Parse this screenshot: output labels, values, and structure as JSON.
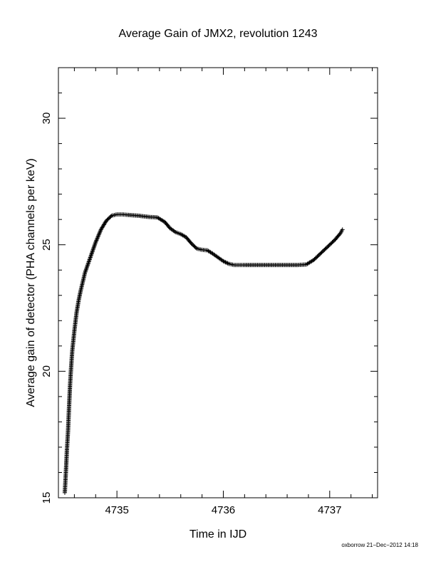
{
  "chart_data": {
    "type": "scatter",
    "title": "Average Gain of JMX2, revolution 1243",
    "xlabel": "Time in IJD",
    "ylabel": "Average gain of detector (PHA channels per keV)",
    "xlim": [
      4734.45,
      4737.45
    ],
    "ylim": [
      15,
      32
    ],
    "x_ticks": [
      4735,
      4736,
      4737
    ],
    "x_tick_labels": [
      "4735",
      "4736",
      "4737"
    ],
    "y_ticks": [
      15,
      20,
      25,
      30
    ],
    "y_tick_labels": [
      "15",
      "20",
      "25",
      "30"
    ],
    "marker": "+",
    "grid": false,
    "series": [
      {
        "color": "#000000",
        "x": [
          4734.51,
          4734.52,
          4734.53,
          4734.54,
          4734.55,
          4734.56,
          4734.57,
          4734.58,
          4734.6,
          4734.62,
          4734.64,
          4734.66,
          4734.7,
          4734.75,
          4734.8,
          4734.85,
          4734.9,
          4734.95,
          4735.0,
          4735.05,
          4735.1,
          4735.2,
          4735.3,
          4735.38,
          4735.45,
          4735.5,
          4735.55,
          4735.6,
          4735.65,
          4735.7,
          4735.75,
          4735.8,
          4735.85,
          4735.9,
          4735.95,
          4736.0,
          4736.05,
          4736.1,
          4736.15,
          4736.2,
          4736.3,
          4736.4,
          4736.5,
          4736.6,
          4736.7,
          4736.78,
          4736.85,
          4736.9,
          4736.95,
          4737.0,
          4737.05,
          4737.1,
          4737.12
        ],
        "y": [
          15.2,
          16.0,
          16.9,
          17.6,
          18.6,
          19.5,
          20.2,
          20.8,
          21.6,
          22.3,
          22.8,
          23.2,
          23.9,
          24.5,
          25.1,
          25.6,
          25.95,
          26.15,
          26.2,
          26.2,
          26.18,
          26.15,
          26.1,
          26.08,
          25.9,
          25.65,
          25.5,
          25.42,
          25.3,
          25.05,
          24.85,
          24.8,
          24.78,
          24.65,
          24.5,
          24.35,
          24.25,
          24.2,
          24.2,
          24.2,
          24.2,
          24.2,
          24.2,
          24.2,
          24.2,
          24.22,
          24.4,
          24.6,
          24.8,
          25.0,
          25.2,
          25.45,
          25.6
        ]
      }
    ],
    "footer_note": "oxborrow 21−Dec−2012 14:18"
  }
}
